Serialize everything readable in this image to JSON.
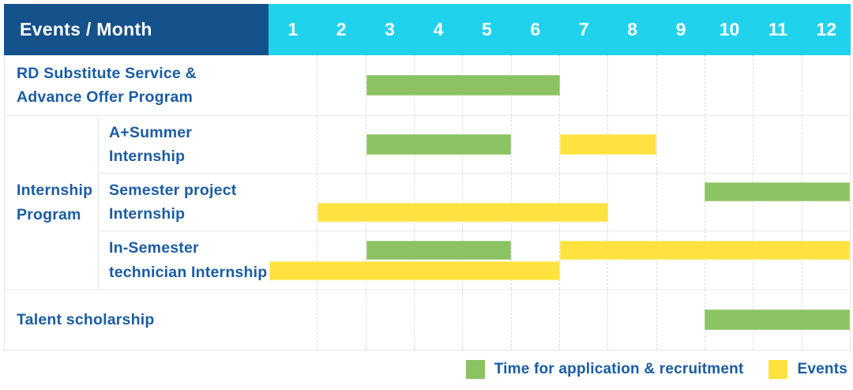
{
  "header": {
    "title": "Events / Month",
    "months": [
      "1",
      "2",
      "3",
      "4",
      "5",
      "6",
      "7",
      "8",
      "9",
      "10",
      "11",
      "12"
    ]
  },
  "group": {
    "label": "Internship\nProgram"
  },
  "rows": [
    {
      "label": "RD Substitute Service &\nAdvance Offer Program",
      "lanes": [
        [
          {
            "color": "green",
            "start": 3,
            "end": 6
          }
        ]
      ]
    },
    {
      "label": "A+Summer\nInternship",
      "lanes": [
        [
          {
            "color": "green",
            "start": 3,
            "end": 5
          },
          {
            "color": "yellow",
            "start": 7,
            "end": 8
          }
        ]
      ]
    },
    {
      "label": "Semester project\nInternship",
      "lanes": [
        [
          {
            "color": "green",
            "start": 10,
            "end": 12
          }
        ],
        [
          {
            "color": "yellow",
            "start": 2,
            "end": 7
          }
        ]
      ]
    },
    {
      "label": "In-Semester\ntechnician Internship",
      "lanes": [
        [
          {
            "color": "green",
            "start": 3,
            "end": 5
          },
          {
            "color": "yellow",
            "start": 7,
            "end": 12
          }
        ],
        [
          {
            "color": "yellow",
            "start": 1,
            "end": 6
          }
        ]
      ]
    },
    {
      "label": "Talent scholarship",
      "lanes": [
        [
          {
            "color": "green",
            "start": 10,
            "end": 12
          }
        ]
      ]
    }
  ],
  "legend": {
    "items": [
      {
        "color": "green",
        "label": "Time for application & recruitment"
      },
      {
        "color": "yellow",
        "label": "Events"
      }
    ]
  },
  "colors": {
    "header_navy": "#15518A",
    "header_cyan": "#20D2EB",
    "bar_green": "#8BC363",
    "bar_yellow": "#FFE23F",
    "label_blue": "#1A5CA3"
  },
  "chart_data": {
    "type": "bar",
    "subtype": "gantt-timeline",
    "title": "Events / Month",
    "xlabel": "Month",
    "x_ticks": [
      1,
      2,
      3,
      4,
      5,
      6,
      7,
      8,
      9,
      10,
      11,
      12
    ],
    "x_range": [
      1,
      12
    ],
    "grid": true,
    "legend_position": "bottom-right",
    "categories": [
      "RD Substitute Service & Advance Offer Program",
      "Internship Program / A+Summer Internship",
      "Internship Program / Semester project Internship",
      "Internship Program / In-Semester technician Internship",
      "Talent scholarship"
    ],
    "series": [
      {
        "name": "Time for application & recruitment",
        "color": "#8BC363",
        "spans": [
          {
            "category": "RD Substitute Service & Advance Offer Program",
            "start_month": 3,
            "end_month": 6
          },
          {
            "category": "Internship Program / A+Summer Internship",
            "start_month": 3,
            "end_month": 5
          },
          {
            "category": "Internship Program / Semester project Internship",
            "start_month": 10,
            "end_month": 12
          },
          {
            "category": "Internship Program / In-Semester technician Internship",
            "start_month": 3,
            "end_month": 5
          },
          {
            "category": "Talent scholarship",
            "start_month": 10,
            "end_month": 12
          }
        ]
      },
      {
        "name": "Events",
        "color": "#FFE23F",
        "spans": [
          {
            "category": "Internship Program / A+Summer Internship",
            "start_month": 7,
            "end_month": 8
          },
          {
            "category": "Internship Program / Semester project Internship",
            "start_month": 2,
            "end_month": 7
          },
          {
            "category": "Internship Program / In-Semester technician Internship",
            "start_month": 1,
            "end_month": 6
          },
          {
            "category": "Internship Program / In-Semester technician Internship",
            "start_month": 7,
            "end_month": 12
          }
        ]
      }
    ]
  }
}
